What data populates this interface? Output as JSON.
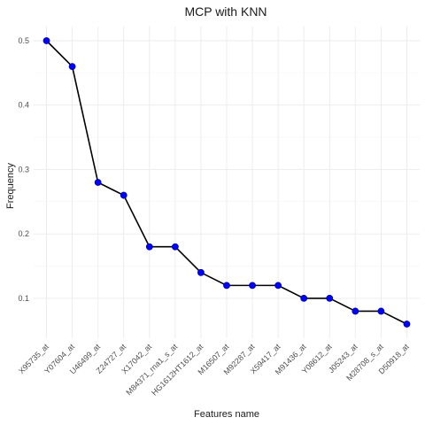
{
  "chart_data": {
    "type": "line",
    "title": "MCP with KNN",
    "xlabel": "Features name",
    "ylabel": "Frequency",
    "categories": [
      "X95735_at",
      "Y07604_at",
      "U46499_at",
      "Z24727_at",
      "X17042_at",
      "M84371_rna1_s_at",
      "HG1612HT1612_at",
      "M16507_at",
      "M92287_at",
      "X59417_at",
      "M91436_at",
      "Y08612_at",
      "J05243_at",
      "M28708_s_at",
      "D50918_at"
    ],
    "values": [
      0.5,
      0.46,
      0.28,
      0.26,
      0.18,
      0.18,
      0.14,
      0.12,
      0.12,
      0.12,
      0.1,
      0.1,
      0.08,
      0.08,
      0.06
    ],
    "y_ticks": [
      0.1,
      0.2,
      0.3,
      0.4,
      0.5
    ],
    "y_tick_labels": [
      "0.1",
      "0.2",
      "0.3",
      "0.4",
      "0.5"
    ],
    "ylim": [
      0.038,
      0.522
    ],
    "grid": true,
    "line_color": "#000000",
    "point_color": "#0000ff"
  }
}
